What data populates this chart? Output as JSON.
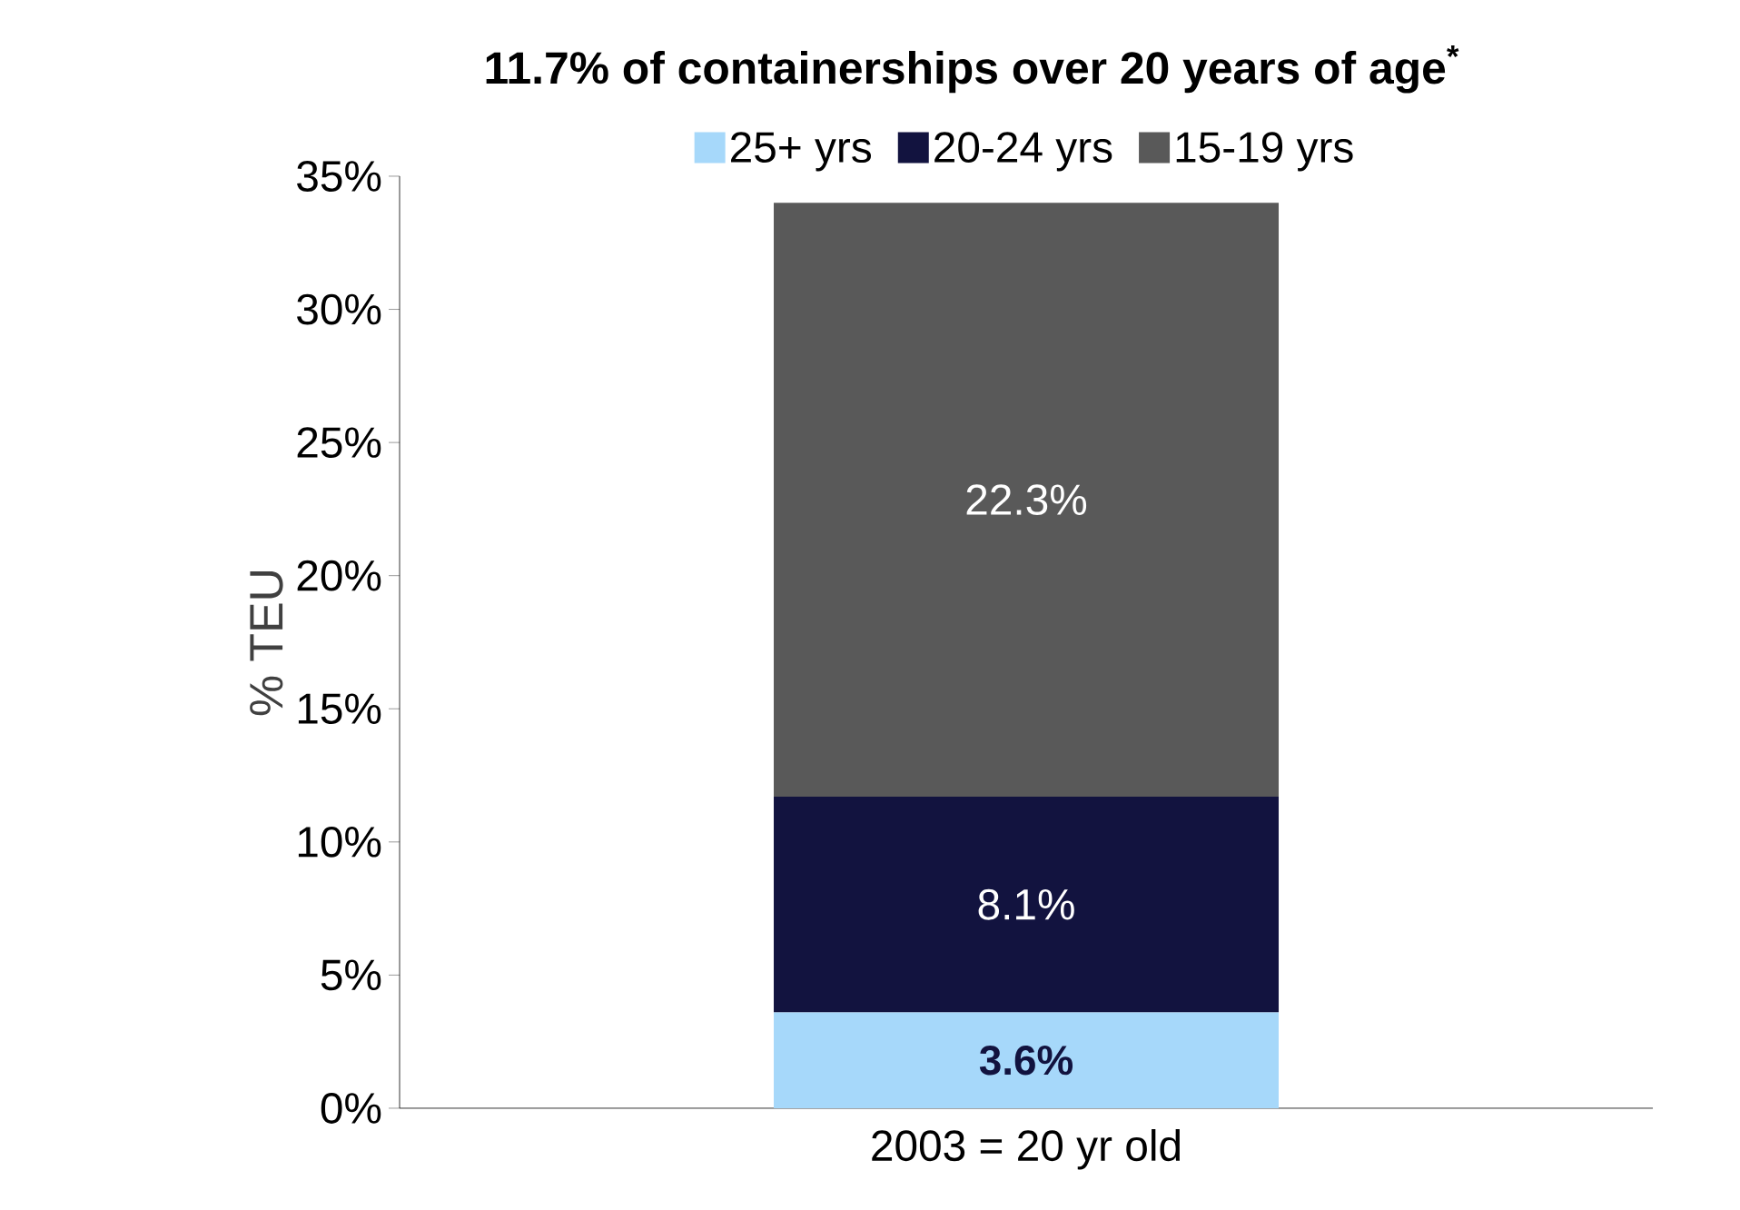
{
  "chart_data": {
    "type": "bar",
    "stacked": true,
    "title": "11.7% of containerships over 20 years of age$^{*}$",
    "ylabel": "% TEU",
    "categories": [
      "2003 = 20 yr old"
    ],
    "series": [
      {
        "name": "25+ yrs",
        "color": "#a6d8fa",
        "values": [
          3.6
        ],
        "value_labels": [
          "3.6%"
        ]
      },
      {
        "name": "20-24 yrs",
        "color": "#12133f",
        "values": [
          8.1
        ],
        "value_labels": [
          "8.1%"
        ]
      },
      {
        "name": "15-19 yrs",
        "color": "#595959",
        "values": [
          22.3
        ],
        "value_labels": [
          "22.3%"
        ]
      }
    ],
    "ylim": [
      0,
      35
    ],
    "yticks": [
      {
        "value": 0,
        "label": "0%"
      },
      {
        "value": 5,
        "label": "5%"
      },
      {
        "value": 10,
        "label": "10%"
      },
      {
        "value": 15,
        "label": "15%"
      },
      {
        "value": 20,
        "label": "20%"
      },
      {
        "value": 25,
        "label": "25%"
      },
      {
        "value": 30,
        "label": "30%"
      },
      {
        "value": 35,
        "label": "35%"
      }
    ],
    "legend": "top",
    "grid": false
  }
}
